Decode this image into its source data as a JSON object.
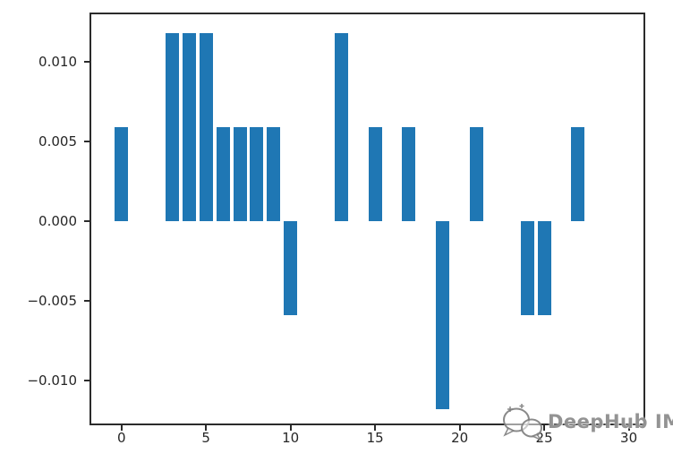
{
  "figure": {
    "background": "#ffffff"
  },
  "chart_data": {
    "type": "bar",
    "title": "",
    "xlabel": "",
    "ylabel": "",
    "grid": false,
    "legend": null,
    "bar_color": "#1f77b4",
    "bar_width": 0.8,
    "x": [
      0,
      1,
      2,
      3,
      4,
      5,
      6,
      7,
      8,
      9,
      10,
      11,
      12,
      13,
      14,
      15,
      16,
      17,
      18,
      19,
      20,
      21,
      22,
      23,
      24,
      25,
      26,
      27,
      28,
      29
    ],
    "values": [
      0.0059,
      0,
      0,
      0.0118,
      0.0118,
      0.0118,
      0.0059,
      0.0059,
      0.0059,
      0.0059,
      -0.0059,
      0,
      0,
      0.0118,
      0,
      0.0059,
      0,
      0.0059,
      0,
      -0.0118,
      0,
      0.0059,
      0,
      0,
      -0.0059,
      -0.0059,
      0,
      0.0059,
      0,
      0
    ],
    "xlim": [
      -1.84,
      30.92
    ],
    "ylim": [
      -0.01278,
      0.01301
    ],
    "xticks": [
      0,
      5,
      10,
      15,
      20,
      25,
      30
    ],
    "xtick_labels": [
      "0",
      "5",
      "10",
      "15",
      "20",
      "25",
      "30"
    ],
    "yticks": [
      0.01,
      0.005,
      0.0,
      -0.005,
      -0.01
    ],
    "ytick_labels": [
      "0.010",
      "0.005",
      "0.000",
      "−0.005",
      "−0.010"
    ],
    "axis_color": "#2b2b2b",
    "tick_label_color": "#262626"
  },
  "watermark": {
    "text": "DeepHub IMBA",
    "color": "#808080"
  }
}
